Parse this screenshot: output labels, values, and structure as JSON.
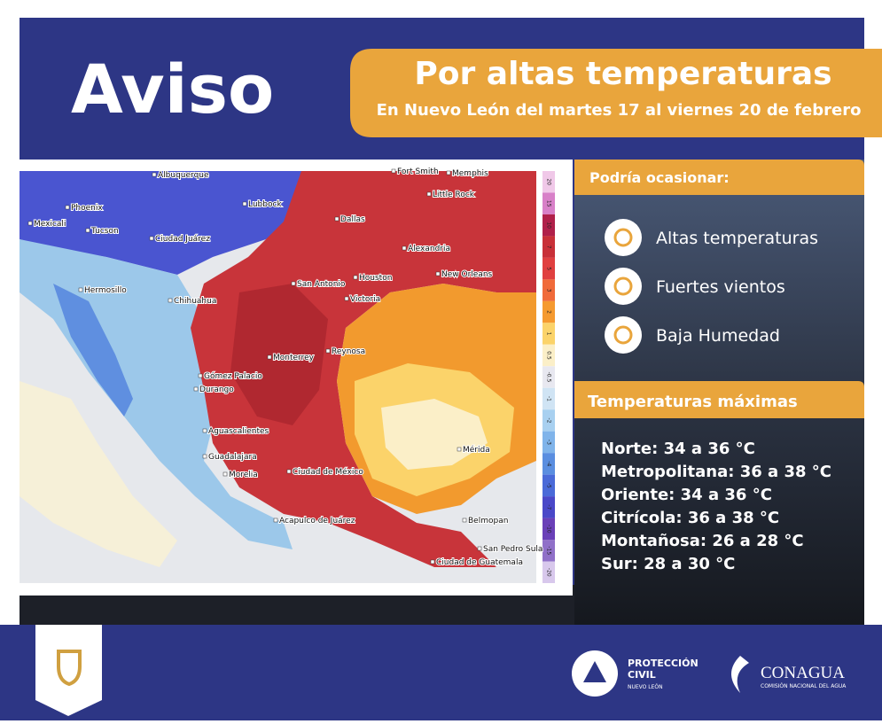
{
  "header": {
    "title": "Aviso",
    "banner_title": "Por altas temperaturas",
    "banner_subtitle": "En Nuevo León del martes 17 al viernes 20 de febrero"
  },
  "map": {
    "cities": [
      "Albuquerque",
      "Fort Smith",
      "Memphis",
      "Little Rock",
      "Lubbock",
      "Phoenix",
      "Dallas",
      "Mexicali",
      "Tucson",
      "Ciudad Juárez",
      "Alexandria",
      "Hermosillo",
      "San Antonio",
      "Houston",
      "New Orleans",
      "Chihuahua",
      "Victoria",
      "Monterrey",
      "Reynosa",
      "Gómez Palacio",
      "Durango",
      "Aguascalientes",
      "Guadalajara",
      "Mérida",
      "Morelia",
      "Ciudad de México",
      "Acapulco de Juárez",
      "Belmopan",
      "San Pedro Sula",
      "Ciudad de Guatemala"
    ],
    "colorbar_ticks": [
      20,
      15,
      10,
      7,
      5,
      3,
      2,
      1,
      0.5,
      -0.5,
      -1,
      -2,
      -3,
      -4,
      -5,
      -7,
      -10,
      -15,
      -20
    ]
  },
  "effects": {
    "title": "Podría ocasionar:",
    "items": [
      "Altas temperaturas",
      "Fuertes vientos",
      "Baja Humedad"
    ]
  },
  "temperatures": {
    "title": "Temperaturas máximas",
    "rows": [
      "Norte: 34 a 36 °C",
      "Metropolitana: 36 a 38 °C",
      "Oriente: 34 a 36 °C",
      "Citrícola: 36 a 38 °C",
      "Montañosa: 26 a 28 °C",
      "Sur: 28 a 30 °C"
    ]
  },
  "footer": {
    "pc_line1": "PROTECCIÓN",
    "pc_line2": "CIVIL",
    "pc_line3": "NUEVO LEÓN",
    "conagua": "CONAGUA",
    "conagua_sub": "COMISIÓN NACIONAL DEL AGUA"
  }
}
